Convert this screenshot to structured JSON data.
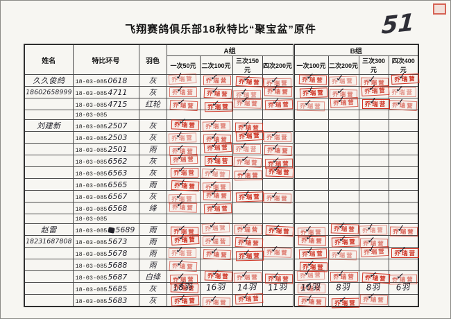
{
  "page": {
    "title": "飞翔赛鸽俱乐部18秋特比“聚宝盆”原件",
    "page_number": "51"
  },
  "table": {
    "headers": {
      "name": "姓名",
      "ring": "特比环号",
      "color": "羽色",
      "group_a": "A组",
      "group_b": "B组",
      "price_cols": [
        "一次50元",
        "二次100元",
        "三次150元",
        "四次200元",
        "一次100元",
        "二次200元",
        "三次300元",
        "四次400元"
      ]
    },
    "ring_prefix": "18-03-085",
    "stamp_text": "乔瑞营",
    "check_glyph": "✓",
    "stamp_color": "#cf3222",
    "rows": [
      {
        "name": "久久俊鸽",
        "ring_suffix": "0618",
        "color": "灰",
        "stamps": [
          1,
          1,
          1,
          1,
          1,
          1,
          1,
          1
        ]
      },
      {
        "name": "18602658999",
        "phone": true,
        "ring_suffix": "4711",
        "color": "灰",
        "stamps": [
          1,
          1,
          1,
          1,
          1,
          1,
          1,
          1
        ]
      },
      {
        "name": "",
        "ring_suffix": "4715",
        "color": "红轮",
        "stamps": [
          1,
          1,
          1,
          1,
          1,
          1,
          1,
          1
        ]
      },
      {
        "name": "",
        "ring_suffix": "",
        "color": "",
        "stamps": [
          0,
          0,
          0,
          0,
          0,
          0,
          0,
          0
        ]
      },
      {
        "name": "刘建新",
        "ring_suffix": "2507",
        "color": "灰",
        "stamps": [
          1,
          1,
          1,
          0,
          0,
          0,
          0,
          0
        ]
      },
      {
        "name": "",
        "ring_suffix": "2503",
        "color": "灰",
        "stamps": [
          1,
          1,
          1,
          1,
          0,
          0,
          0,
          0
        ]
      },
      {
        "name": "",
        "ring_suffix": "2501",
        "color": "雨",
        "stamps": [
          1,
          1,
          1,
          1,
          0,
          0,
          0,
          0
        ]
      },
      {
        "name": "",
        "ring_suffix": "6562",
        "color": "灰",
        "stamps": [
          1,
          1,
          1,
          1,
          0,
          0,
          0,
          0
        ]
      },
      {
        "name": "",
        "ring_suffix": "6563",
        "color": "灰",
        "stamps": [
          1,
          1,
          1,
          1,
          0,
          0,
          0,
          0
        ]
      },
      {
        "name": "",
        "ring_suffix": "6565",
        "color": "雨",
        "stamps": [
          1,
          1,
          0,
          0,
          0,
          0,
          0,
          0
        ]
      },
      {
        "name": "",
        "ring_suffix": "6567",
        "color": "灰",
        "stamps": [
          1,
          1,
          1,
          1,
          0,
          0,
          0,
          0
        ]
      },
      {
        "name": "",
        "ring_suffix": "6568",
        "color": "绛",
        "stamps": [
          1,
          1,
          0,
          0,
          0,
          0,
          0,
          0
        ]
      },
      {
        "name": "",
        "ring_suffix": "",
        "color": "",
        "stamps": [
          0,
          0,
          0,
          0,
          0,
          0,
          0,
          0
        ]
      },
      {
        "name": "赵雷",
        "ring_suffix": "5689",
        "blot": true,
        "color": "雨",
        "stamps": [
          1,
          1,
          1,
          1,
          1,
          1,
          1,
          1
        ]
      },
      {
        "name": "18231687808",
        "phone": true,
        "ring_suffix": "5673",
        "color": "雨",
        "stamps": [
          1,
          1,
          1,
          0,
          1,
          1,
          1,
          0
        ]
      },
      {
        "name": "",
        "ring_suffix": "5678",
        "color": "雨",
        "stamps": [
          1,
          1,
          1,
          1,
          1,
          1,
          1,
          1
        ]
      },
      {
        "name": "",
        "ring_suffix": "5688",
        "color": "雨",
        "stamps": [
          1,
          0,
          0,
          0,
          1,
          0,
          0,
          0
        ]
      },
      {
        "name": "",
        "ring_suffix": "5687",
        "color": "白绛",
        "stamps": [
          1,
          1,
          1,
          1,
          1,
          1,
          1,
          1
        ]
      },
      {
        "name": "",
        "ring_suffix": "5685",
        "color": "灰",
        "stamps": [
          1,
          0,
          0,
          0,
          1,
          0,
          0,
          0
        ]
      },
      {
        "name": "",
        "ring_suffix": "5683",
        "color": "灰",
        "stamps": [
          1,
          1,
          1,
          0,
          1,
          1,
          1,
          0
        ]
      }
    ]
  },
  "footer": {
    "tallies": [
      "18羽",
      "16羽",
      "14羽",
      "11羽",
      "10羽",
      "8羽",
      "8羽",
      "6羽"
    ]
  }
}
